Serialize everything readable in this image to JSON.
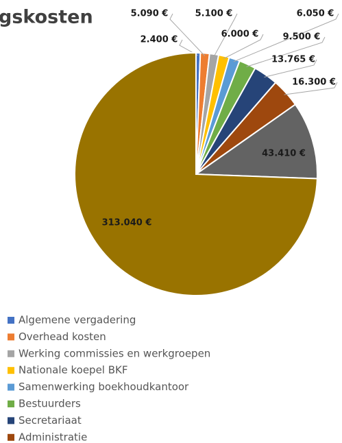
{
  "chart_data": {
    "type": "pie",
    "title": "gskosten",
    "categories": [
      "Algemene vergadering",
      "Overhead kosten",
      "Werking commissies en werkgroepen",
      "Nationale koepel BKF",
      "Samenwerking boekhoudkantoor",
      "Bestuurders",
      "Secretariaat",
      "Administratie",
      null,
      null
    ],
    "values": [
      2400,
      5090,
      5100,
      6000,
      6050,
      9500,
      13765,
      16300,
      43410,
      313040
    ],
    "value_labels": [
      "2.400 €",
      "5.090 €",
      "5.100 €",
      "6.000 €",
      "6.050 €",
      "9.500 €",
      "13.765 €",
      "16.300 €",
      "43.410 €",
      "313.040 €"
    ],
    "colors": [
      "#4472c4",
      "#ed7d31",
      "#a5a5a5",
      "#ffc000",
      "#5b9bd5",
      "#70ad47",
      "#264478",
      "#9e480e",
      "#636363",
      "#997300"
    ],
    "legend": "bottom"
  }
}
